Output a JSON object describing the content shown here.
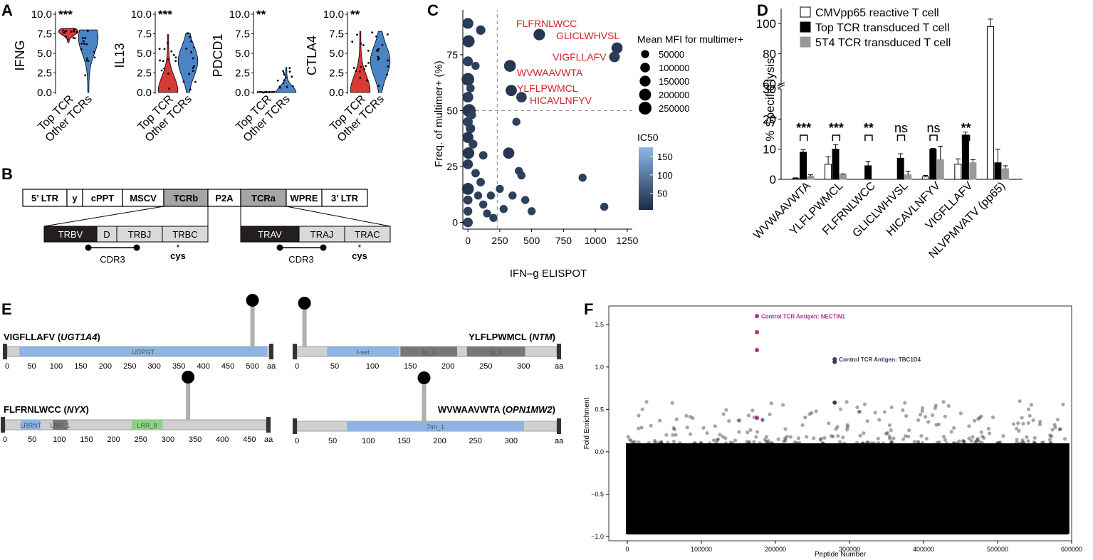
{
  "panel_letters": [
    "A",
    "B",
    "C",
    "D",
    "E",
    "F"
  ],
  "colors": {
    "top_tcr_red": "#d83a36",
    "other_tcr_blue": "#4b84c4",
    "tcr_gray": "#a6a6a6",
    "light_gray": "#d9d9d9",
    "dark_box": "#231f20",
    "peptide_red": "#d8202a",
    "control_magenta": "#b0308c",
    "domain_blue": "#8db4e2",
    "domain_gray": "#777777",
    "domain_green": "#8fcf8a",
    "bubble_dark": "#1d2b44",
    "bubble_light": "#8ab8e8"
  },
  "chart_data": [
    {
      "panel": "A",
      "type": "violin",
      "categories": [
        "Top TCR",
        "Other TCRs"
      ],
      "ylim": [
        0,
        10
      ],
      "ytick_labels": [
        "0.0",
        "2.5",
        "5.0",
        "7.5",
        "10.0"
      ],
      "subplots": [
        {
          "gene": "IFNG",
          "significance": "***",
          "top_tcr": {
            "median": 7.8,
            "range": [
              6.4,
              8.2
            ]
          },
          "other_tcrs": {
            "median": 7.0,
            "range": [
              0.0,
              8.0
            ]
          }
        },
        {
          "gene": "IL13",
          "significance": "***",
          "top_tcr": {
            "median": 0.2,
            "range": [
              0.0,
              7.4
            ]
          },
          "other_tcrs": {
            "median": 4.0,
            "range": [
              0.0,
              7.6
            ]
          }
        },
        {
          "gene": "PDCD1",
          "significance": "**",
          "top_tcr": {
            "median": 0.0,
            "range": [
              0.0,
              0.1
            ]
          },
          "other_tcrs": {
            "median": 0.0,
            "range": [
              0.0,
              3.2
            ]
          }
        },
        {
          "gene": "CTLA4",
          "significance": "**",
          "top_tcr": {
            "median": 0.2,
            "range": [
              0.0,
              7.8
            ]
          },
          "other_tcrs": {
            "median": 4.0,
            "range": [
              0.0,
              7.8
            ]
          }
        }
      ]
    },
    {
      "panel": "C",
      "type": "scatter",
      "xlabel": "IFN–g ELISPOT",
      "ylabel": "Freq. of multimer+ (%)",
      "xlim": [
        -40,
        1290
      ],
      "ylim": [
        -3,
        95
      ],
      "x_ticks": [
        0,
        250,
        500,
        750,
        1000,
        1250
      ],
      "x_tick_labels": [
        "0",
        "250",
        "500",
        "750",
        "1000",
        "1250"
      ],
      "y_ticks": [
        0,
        25,
        50,
        75
      ],
      "y_tick_labels": [
        "0",
        "25",
        "50",
        "75"
      ],
      "threshold_x": 230,
      "threshold_y": 50,
      "size_legend_title": "Mean MFI for multimer+",
      "size_legend": [
        {
          "label": "50000",
          "value": 50000
        },
        {
          "label": "100000",
          "value": 100000
        },
        {
          "label": "150000",
          "value": 150000
        },
        {
          "label": "200000",
          "value": 200000
        },
        {
          "label": "250000",
          "value": 250000
        }
      ],
      "color_legend_title": "IC50",
      "color_legend_ticks": [
        "150",
        "100",
        "50"
      ],
      "color_legend_values": [
        150,
        100,
        50
      ],
      "color_range": [
        5,
        175
      ],
      "labeled_points": [
        {
          "label": "FLFRNLWCC",
          "x": 560,
          "y": 84,
          "mfi": 180000,
          "ic50": 20
        },
        {
          "label": "GLICLWHVSL",
          "x": 1170,
          "y": 78,
          "mfi": 160000,
          "ic50": 20
        },
        {
          "label": "VIGFLLAFV",
          "x": 1150,
          "y": 74,
          "mfi": 140000,
          "ic50": 25
        },
        {
          "label": "WVWAAVWTA",
          "x": 330,
          "y": 70,
          "mfi": 200000,
          "ic50": 20
        },
        {
          "label": "YLFLPWMCL",
          "x": 340,
          "y": 59,
          "mfi": 170000,
          "ic50": 20
        },
        {
          "label": "HICAVLNFYV",
          "x": 420,
          "y": 56,
          "mfi": 130000,
          "ic50": 25
        }
      ],
      "points": [
        {
          "x": 0,
          "y": 89,
          "mfi": 150000,
          "ic50": 25
        },
        {
          "x": 100,
          "y": 86,
          "mfi": 90000,
          "ic50": 25
        },
        {
          "x": 5,
          "y": 81,
          "mfi": 210000,
          "ic50": 20
        },
        {
          "x": 0,
          "y": 72,
          "mfi": 110000,
          "ic50": 30
        },
        {
          "x": 0,
          "y": 64,
          "mfi": 240000,
          "ic50": 20
        },
        {
          "x": 0,
          "y": 56,
          "mfi": 140000,
          "ic50": 25
        },
        {
          "x": 10,
          "y": 50,
          "mfi": 260000,
          "ic50": 20
        },
        {
          "x": 0,
          "y": 45,
          "mfi": 100000,
          "ic50": 30
        },
        {
          "x": 20,
          "y": 42,
          "mfi": 90000,
          "ic50": 25
        },
        {
          "x": 0,
          "y": 38,
          "mfi": 160000,
          "ic50": 20
        },
        {
          "x": 5,
          "y": 31,
          "mfi": 180000,
          "ic50": 20
        },
        {
          "x": 0,
          "y": 26,
          "mfi": 110000,
          "ic50": 25
        },
        {
          "x": 0,
          "y": 15,
          "mfi": 200000,
          "ic50": 20
        },
        {
          "x": 0,
          "y": 10,
          "mfi": 80000,
          "ic50": 30
        },
        {
          "x": 0,
          "y": 5,
          "mfi": 70000,
          "ic50": 30
        },
        {
          "x": 0,
          "y": 0,
          "mfi": 100000,
          "ic50": 30
        },
        {
          "x": 20,
          "y": 60,
          "mfi": 60000,
          "ic50": 30
        },
        {
          "x": 40,
          "y": 35,
          "mfi": 70000,
          "ic50": 30
        },
        {
          "x": 60,
          "y": 22,
          "mfi": 60000,
          "ic50": 30
        },
        {
          "x": 80,
          "y": 12,
          "mfi": 50000,
          "ic50": 30
        },
        {
          "x": 100,
          "y": 18,
          "mfi": 60000,
          "ic50": 30
        },
        {
          "x": 120,
          "y": 8,
          "mfi": 50000,
          "ic50": 30
        },
        {
          "x": 150,
          "y": 4,
          "mfi": 50000,
          "ic50": 30
        },
        {
          "x": 180,
          "y": 12,
          "mfi": 50000,
          "ic50": 30
        },
        {
          "x": 200,
          "y": 2,
          "mfi": 50000,
          "ic50": 30
        },
        {
          "x": 250,
          "y": 15,
          "mfi": 50000,
          "ic50": 30
        },
        {
          "x": 280,
          "y": 6,
          "mfi": 50000,
          "ic50": 30
        },
        {
          "x": 320,
          "y": 31,
          "mfi": 170000,
          "ic50": 20
        },
        {
          "x": 380,
          "y": 45,
          "mfi": 50000,
          "ic50": 30
        },
        {
          "x": 400,
          "y": 23,
          "mfi": 50000,
          "ic50": 30
        },
        {
          "x": 420,
          "y": 21,
          "mfi": 50000,
          "ic50": 30
        },
        {
          "x": 450,
          "y": 10,
          "mfi": 50000,
          "ic50": 30
        },
        {
          "x": 500,
          "y": 5,
          "mfi": 50000,
          "ic50": 30
        },
        {
          "x": 350,
          "y": 12,
          "mfi": 50000,
          "ic50": 30
        },
        {
          "x": 900,
          "y": 20,
          "mfi": 50000,
          "ic50": 30
        },
        {
          "x": 1070,
          "y": 7,
          "mfi": 50000,
          "ic50": 30
        },
        {
          "x": 60,
          "y": 70,
          "mfi": 50000,
          "ic50": 30
        },
        {
          "x": 30,
          "y": 48,
          "mfi": 60000,
          "ic50": 30
        },
        {
          "x": 120,
          "y": 30,
          "mfi": 60000,
          "ic50": 30
        }
      ]
    },
    {
      "panel": "D",
      "type": "bar",
      "ylabel": "% Specific lysis",
      "ylim_lower": [
        0,
        30
      ],
      "ylim_upper": [
        60,
        110
      ],
      "y_tick_labels_lower": [
        "0",
        "10",
        "20",
        "30"
      ],
      "y_tick_labels_upper": [
        "60",
        "80",
        "100"
      ],
      "categories": [
        "WVWAAVWTA",
        "YLFLPWMCL",
        "FLFRNLWCC",
        "GLICLWHVSL",
        "HICAVLNFYV",
        "VIGFLLAFV",
        "NLVPMVATV (pp65)"
      ],
      "series": [
        {
          "name": "CMVpp65 reactive T cell",
          "values": [
            0.3,
            5,
            0,
            0,
            0.8,
            5,
            98
          ],
          "errors": [
            0.2,
            2.5,
            0,
            0,
            0.5,
            1.8,
            5
          ]
        },
        {
          "name": "Top TCR transduced T cell",
          "values": [
            9,
            10,
            4.5,
            7,
            10,
            14.5,
            5.5
          ],
          "errors": [
            0.8,
            1.5,
            1.5,
            1.5,
            0.3,
            1.2,
            4.5
          ]
        },
        {
          "name": "5T4 TCR transduced T cell",
          "values": [
            1,
            1.5,
            0,
            1.5,
            6.5,
            5.5,
            3.5
          ],
          "errors": [
            0.5,
            0.3,
            0,
            1.2,
            4.5,
            1.0,
            1.0
          ]
        }
      ],
      "significance": [
        "***",
        "***",
        "**",
        "ns",
        "ns",
        "**",
        ""
      ]
    },
    {
      "panel": "F",
      "type": "scatter",
      "xlabel": "Peptide Number",
      "ylabel": "Fold Enrichment",
      "xlim": [
        -25000,
        600000
      ],
      "ylim": [
        -1.05,
        1.72
      ],
      "x_ticks": [
        0,
        100000,
        200000,
        300000,
        400000,
        500000,
        600000
      ],
      "x_tick_labels": [
        "0",
        "100000",
        "200000",
        "300000",
        "400000",
        "500000",
        "600000"
      ],
      "y_ticks": [
        -1.0,
        -0.5,
        0.0,
        0.5,
        1.0,
        1.5
      ],
      "y_tick_labels": [
        "−1.0",
        "−0.5",
        "0.0",
        "0.5",
        "1.0",
        "1.5"
      ],
      "background_range": [
        -0.97,
        0.1
      ],
      "control_points": [
        {
          "label": "Control TCR Antigen: NECTIN1",
          "x": 175000,
          "y": 1.6,
          "color": "#b0308c"
        },
        {
          "label": "",
          "x": 175000,
          "y": 1.41,
          "color": "#b0308c"
        },
        {
          "label": "",
          "x": 175000,
          "y": 1.2,
          "color": "#b0308c"
        },
        {
          "label": "",
          "x": 175000,
          "y": 0.4,
          "color": "#b0308c"
        },
        {
          "label": "Control TCR Antigen: TBC1D4",
          "x": 280000,
          "y": 1.09,
          "color": "#3a3a5a"
        },
        {
          "label": "",
          "x": 280000,
          "y": 1.06,
          "color": "#3a3a5a"
        },
        {
          "label": "",
          "x": 280000,
          "y": 0.58,
          "color": "#3a3a5a"
        }
      ]
    }
  ],
  "panel_B": {
    "vector": [
      "5’ LTR",
      "y",
      "cPPT",
      "MSCV",
      "TCRb",
      "P2A",
      "TCRa",
      "WPRE",
      "3’ LTR"
    ],
    "tcrb_segments": [
      "TRBV",
      "D",
      "TRBJ",
      "TRBC"
    ],
    "tcra_segments": [
      "TRAV",
      "TRAJ",
      "TRAC"
    ],
    "cdr3_label": "CDR3",
    "cys_label": "cys",
    "cys_star": "*"
  },
  "panel_E": {
    "aa_label": "aa",
    "proteins": [
      {
        "peptide": "VIGFLLAFV",
        "gene": "UGT1A4",
        "length": 534,
        "site": 500,
        "ticks": [
          "0",
          "50",
          "100",
          "150",
          "200",
          "250",
          "300",
          "350",
          "400",
          "450",
          "500"
        ],
        "tick_values": [
          0,
          50,
          100,
          150,
          200,
          250,
          300,
          350,
          400,
          450,
          500
        ],
        "domains": [
          {
            "name": "UDPGT",
            "start": 25,
            "end": 530,
            "color": "#8db4e2"
          }
        ]
      },
      {
        "peptide": "YLFLPWMCL",
        "gene": "NTM",
        "length": 344,
        "site": 10,
        "ticks": [
          "0",
          "50",
          "100",
          "150",
          "200",
          "250",
          "300"
        ],
        "tick_values": [
          0,
          50,
          100,
          150,
          200,
          250,
          300
        ],
        "domains": [
          {
            "name": "I-set",
            "start": 40,
            "end": 135,
            "color": "#8db4e2"
          },
          {
            "name": "Ig_3",
            "start": 137,
            "end": 212,
            "color": "#777777"
          },
          {
            "name": "Ig_3",
            "start": 225,
            "end": 302,
            "color": "#777777"
          }
        ]
      },
      {
        "peptide": "FLFRNLWCC",
        "gene": "NYX",
        "length": 481,
        "site": 337,
        "ticks": [
          "0",
          "50",
          "100",
          "150",
          "200",
          "250",
          "300",
          "350",
          "400",
          "450"
        ],
        "tick_values": [
          0,
          50,
          100,
          150,
          200,
          250,
          300,
          350,
          400,
          450
        ],
        "domains": [
          {
            "name": "LRRNT",
            "start": 30,
            "end": 65,
            "color": "#8db4e2"
          },
          {
            "name": "LRR_1",
            "start": 88,
            "end": 115,
            "color": "#777777"
          },
          {
            "name": "LRR_8",
            "start": 233,
            "end": 290,
            "color": "#8fcf8a"
          }
        ]
      },
      {
        "peptide": "WVWAAVWTA",
        "gene": "OPN1MW2",
        "length": 364,
        "site": 178,
        "ticks": [
          "0",
          "50",
          "100",
          "150",
          "200",
          "250",
          "300"
        ],
        "tick_values": [
          0,
          50,
          100,
          150,
          200,
          250,
          300
        ],
        "domains": [
          {
            "name": "7tm_1",
            "start": 70,
            "end": 318,
            "color": "#8db4e2"
          }
        ]
      }
    ]
  }
}
